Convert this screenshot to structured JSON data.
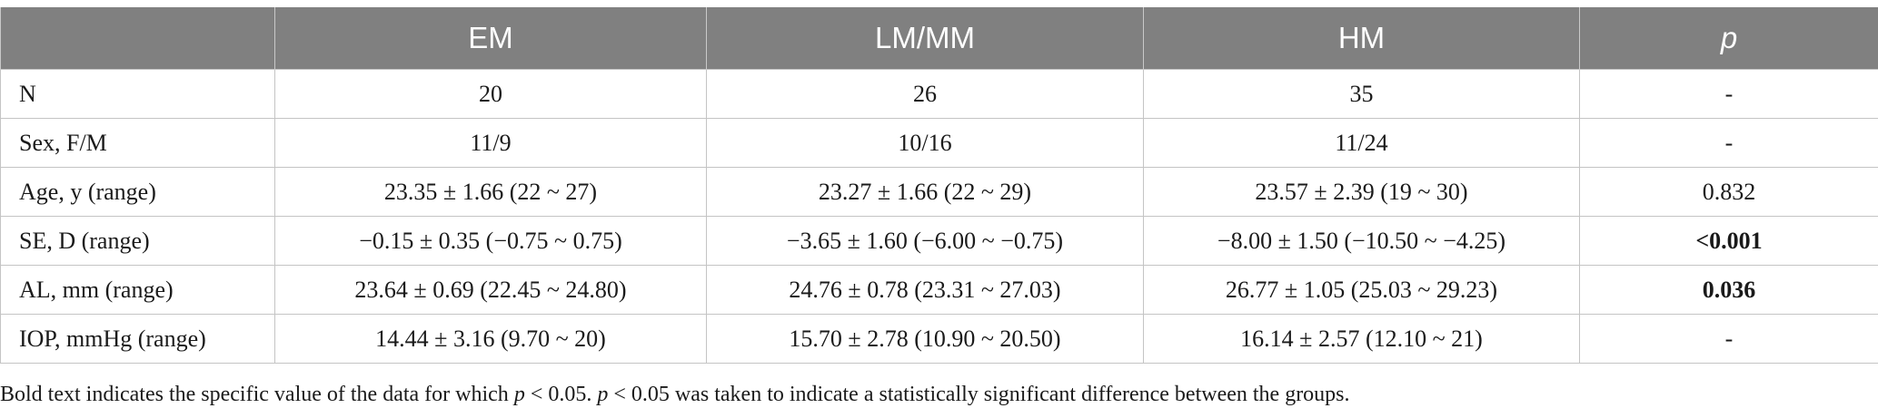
{
  "table": {
    "headers": [
      "",
      "EM",
      "LM/MM",
      "HM",
      "p"
    ],
    "rows": [
      {
        "label": "N",
        "em": "20",
        "lm": "26",
        "hm": "35",
        "p": "-",
        "p_bold": false
      },
      {
        "label": "Sex, F/M",
        "em": "11/9",
        "lm": "10/16",
        "hm": "11/24",
        "p": "-",
        "p_bold": false
      },
      {
        "label": "Age, y (range)",
        "em": "23.35 ± 1.66 (22 ~ 27)",
        "lm": "23.27 ± 1.66 (22 ~ 29)",
        "hm": "23.57 ± 2.39 (19 ~ 30)",
        "p": "0.832",
        "p_bold": false
      },
      {
        "label": "SE, D (range)",
        "em": "−0.15 ± 0.35 (−0.75 ~ 0.75)",
        "lm": "−3.65 ± 1.60 (−6.00 ~ −0.75)",
        "hm": "−8.00 ± 1.50 (−10.50 ~ −4.25)",
        "p": "<0.001",
        "p_bold": true
      },
      {
        "label": "AL, mm (range)",
        "em": "23.64 ± 0.69 (22.45 ~ 24.80)",
        "lm": "24.76 ± 0.78 (23.31 ~ 27.03)",
        "hm": "26.77 ± 1.05 (25.03 ~ 29.23)",
        "p": "0.036",
        "p_bold": true
      },
      {
        "label": "IOP, mmHg (range)",
        "em": "14.44 ± 3.16 (9.70 ~ 20)",
        "lm": "15.70 ± 2.78 (10.90 ~ 20.50)",
        "hm": "16.14 ± 2.57 (12.10 ~ 21)",
        "p": "-",
        "p_bold": false
      }
    ]
  },
  "footnote": {
    "part1": "Bold text indicates the specific value of the data for which ",
    "p1": "p",
    "part2": " < 0.05. ",
    "p2": "p",
    "part3": " < 0.05 was taken to indicate a statistically significant difference between the groups."
  },
  "colors": {
    "header_bg": "#808080",
    "header_text": "#ffffff",
    "grid": "#c4c4c4"
  }
}
